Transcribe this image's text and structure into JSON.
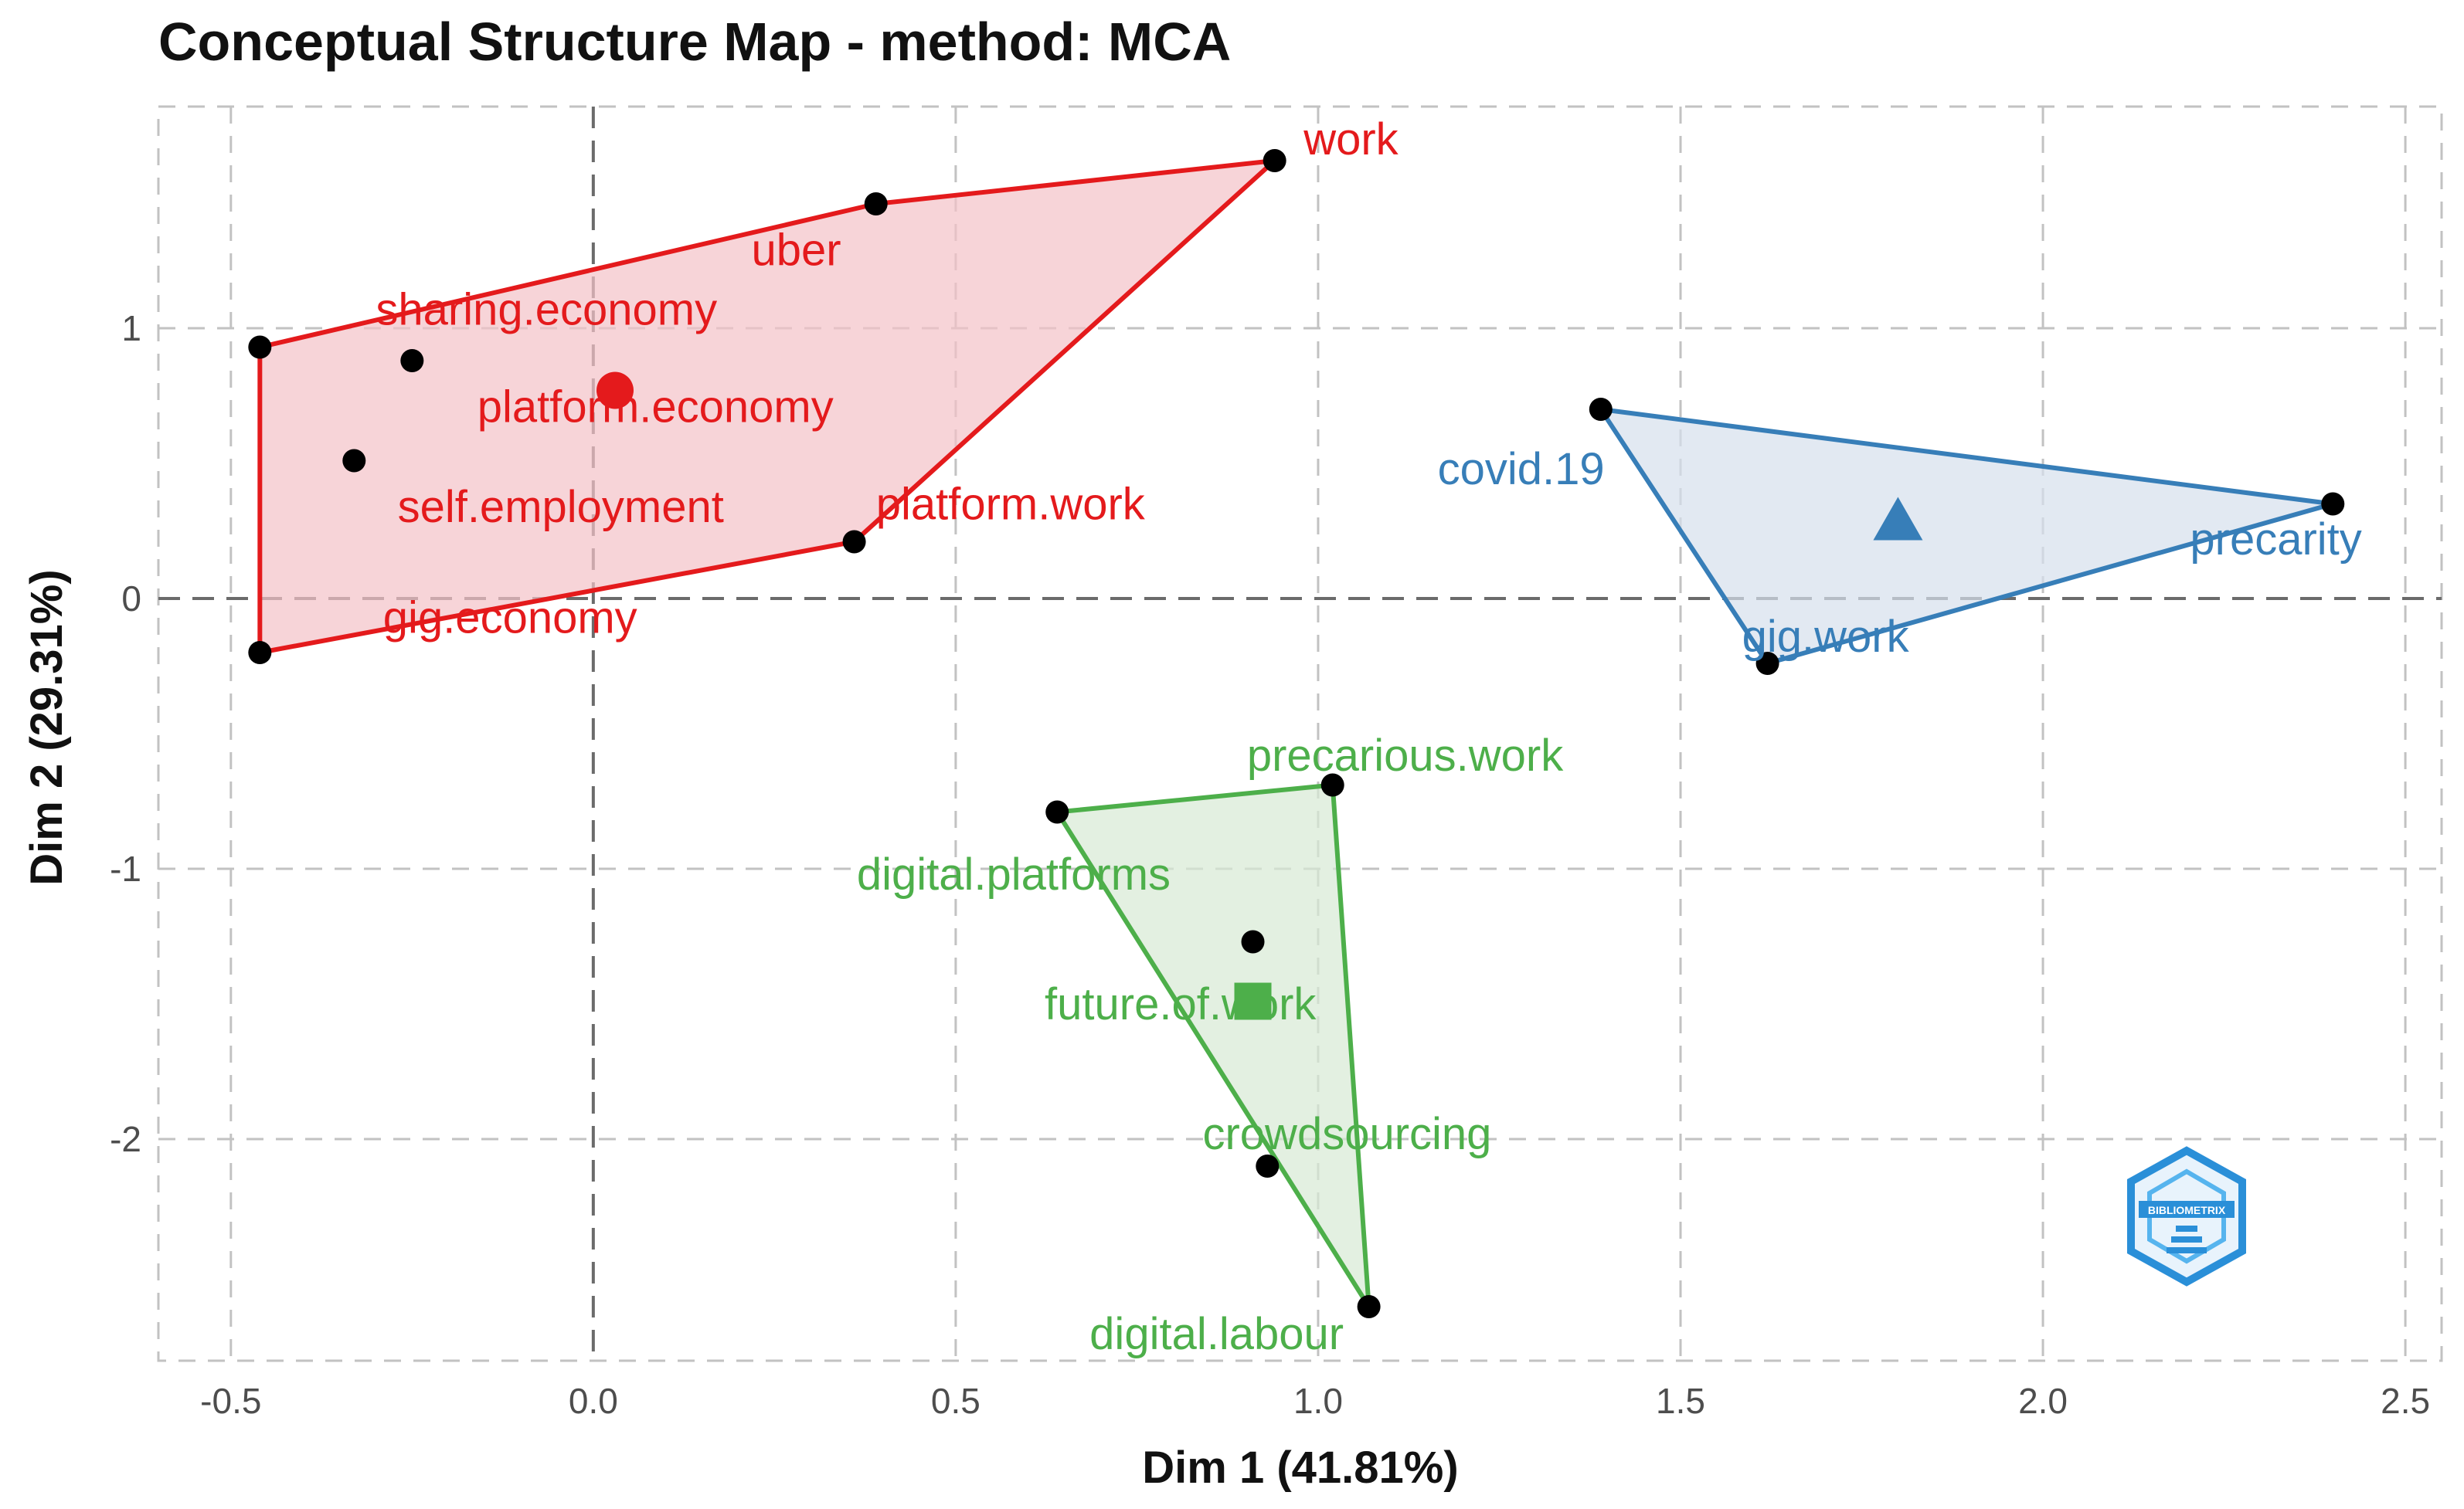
{
  "chart_data": {
    "type": "scatter",
    "title": "Conceptual Structure Map - method: MCA",
    "xlabel": "Dim 1 (41.81%)",
    "ylabel": "Dim 2 (29.31%)",
    "xlim": [
      -0.6,
      2.55
    ],
    "ylim": [
      -2.82,
      1.82
    ],
    "x_ticks": [
      -0.5,
      0.0,
      0.5,
      1.0,
      1.5,
      2.0,
      2.5
    ],
    "x_tick_labels": [
      "-0.5",
      "0.0",
      "0.5",
      "1.0",
      "1.5",
      "2.0",
      "2.5"
    ],
    "y_ticks": [
      1,
      0,
      -1,
      -2
    ],
    "y_tick_labels": [
      "1",
      "0",
      "-1",
      "-2"
    ],
    "grid": true,
    "legend": "none",
    "clusters": [
      {
        "color": "#e41a1c",
        "fill": "#f4c2c7",
        "centroid_shape": "circle",
        "centroid": {
          "x": 0.03,
          "y": 0.77
        },
        "hull": [
          "work",
          "uber",
          "sharing.economy",
          "gig.economy",
          "platform.work"
        ],
        "points": [
          {
            "label": "work",
            "x": 0.94,
            "y": 1.62,
            "label_dx": 0.04,
            "label_dy": 0.08,
            "anchor": "start"
          },
          {
            "label": "uber",
            "x": 0.39,
            "y": 1.46,
            "label_dx": -0.11,
            "label_dy": -0.17,
            "anchor": "middle"
          },
          {
            "label": "sharing.economy",
            "x": -0.46,
            "y": 0.93,
            "label_dx": 0.16,
            "label_dy": 0.14,
            "anchor": "start"
          },
          {
            "label": "platform.economy",
            "x": -0.25,
            "y": 0.88,
            "label_dx": 0.09,
            "label_dy": -0.17,
            "anchor": "start"
          },
          {
            "label": "self.employment",
            "x": -0.33,
            "y": 0.51,
            "label_dx": 0.06,
            "label_dy": -0.17,
            "anchor": "start"
          },
          {
            "label": "platform.work",
            "x": 0.36,
            "y": 0.21,
            "label_dx": 0.03,
            "label_dy": 0.14,
            "anchor": "start"
          },
          {
            "label": "gig.economy",
            "x": -0.46,
            "y": -0.2,
            "label_dx": 0.17,
            "label_dy": 0.13,
            "anchor": "start"
          }
        ]
      },
      {
        "color": "#377eb8",
        "fill": "#d5e0ed",
        "centroid_shape": "triangle",
        "centroid": {
          "x": 1.8,
          "y": 0.29
        },
        "hull": [
          "covid.19",
          "precarity",
          "gig.work"
        ],
        "points": [
          {
            "label": "covid.19",
            "x": 1.39,
            "y": 0.7,
            "label_dx": -0.11,
            "label_dy": -0.22,
            "anchor": "middle"
          },
          {
            "label": "precarity",
            "x": 2.4,
            "y": 0.35,
            "label_dx": 0.04,
            "label_dy": -0.13,
            "anchor": "end"
          },
          {
            "label": "gig.work",
            "x": 1.62,
            "y": -0.24,
            "label_dx": 0.08,
            "label_dy": 0.1,
            "anchor": "middle"
          }
        ]
      },
      {
        "color": "#4daf4a",
        "fill": "#d7ead4",
        "centroid_shape": "square",
        "centroid": {
          "x": 0.91,
          "y": -1.49
        },
        "hull": [
          "digital.platforms",
          "precarious.work",
          "digital.labour"
        ],
        "points": [
          {
            "label": "precarious.work",
            "x": 1.02,
            "y": -0.69,
            "label_dx": 0.1,
            "label_dy": 0.11,
            "anchor": "middle"
          },
          {
            "label": "digital.platforms",
            "x": 0.64,
            "y": -0.79,
            "label_dx": -0.06,
            "label_dy": -0.23,
            "anchor": "middle"
          },
          {
            "label": "future.of.work",
            "x": 0.91,
            "y": -1.27,
            "label_dx": -0.1,
            "label_dy": -0.23,
            "anchor": "middle"
          },
          {
            "label": "crowdsourcing",
            "x": 0.93,
            "y": -2.1,
            "label_dx": 0.11,
            "label_dy": 0.12,
            "anchor": "middle"
          },
          {
            "label": "digital.labour",
            "x": 1.07,
            "y": -2.62,
            "label_dx": -0.21,
            "label_dy": -0.1,
            "anchor": "middle"
          }
        ]
      }
    ]
  },
  "logo": {
    "name": "bibliometrix-logo-icon",
    "text": "BIBLIOMETRIX",
    "color": "#2a8fd8"
  }
}
